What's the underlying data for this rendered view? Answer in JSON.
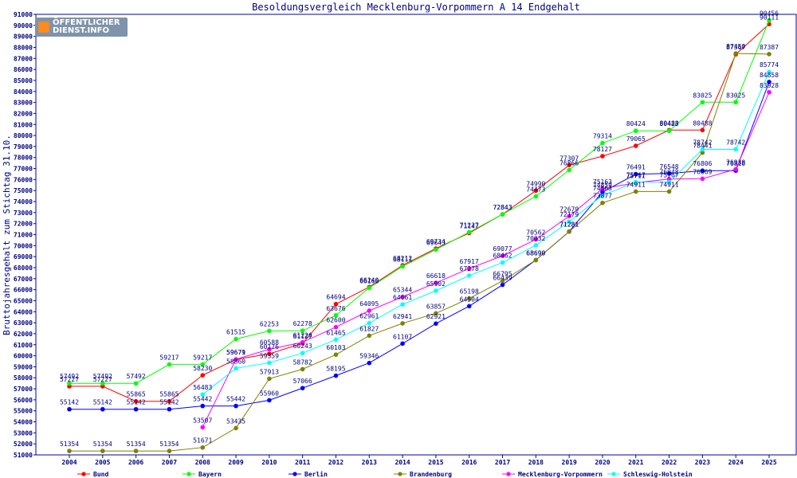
{
  "logo": {
    "line1": "ÖFFENTLICHER",
    "line2": "DIENST.INFO"
  },
  "chart_data": {
    "type": "line",
    "title": "Besoldungsvergleich Mecklenburg-Vorpommern A 14 Endgehalt",
    "ylabel": "Bruttojahresgehalt zum Stichtag 31.10.",
    "xlabel": "",
    "ylim": [
      51000,
      91000
    ],
    "grid": false,
    "legend_position": "bottom",
    "x": [
      "2004",
      "2005",
      "2006",
      "2007",
      "2008",
      "2009",
      "2010",
      "2011",
      "2012",
      "2013",
      "2014",
      "2015",
      "2016",
      "2017",
      "2018",
      "2019",
      "2020",
      "2021",
      "2022",
      "2023",
      "2024",
      "2025"
    ],
    "series": [
      {
        "name": "Bund",
        "color": "#ff0000",
        "values": [
          57227,
          57227,
          55865,
          55865,
          58230,
          59671,
          60176,
          61127,
          64694,
          66240,
          68212,
          69734,
          71147,
          72843,
          74990,
          77307,
          78127,
          79065,
          80488,
          80488,
          87367,
          90111
        ]
      },
      {
        "name": "Bayern",
        "color": "#00ff00",
        "values": [
          57492,
          57492,
          57492,
          59217,
          59217,
          61515,
          62253,
          62278,
          63676,
          66166,
          68111,
          69643,
          71227,
          72843,
          74473,
          76866,
          79314,
          80424,
          80423,
          83025,
          83025,
          90456
        ]
      },
      {
        "name": "Berlin",
        "color": "#0000ff",
        "values": [
          55142,
          55142,
          55142,
          55142,
          55442,
          55442,
          55960,
          57066,
          58195,
          59346,
          61107,
          62921,
          64504,
          66439,
          68690,
          71281,
          74859,
          76491,
          76548,
          76806,
          76810,
          84858
        ]
      },
      {
        "name": "Brandenburg",
        "color": "#808000",
        "values": [
          51354,
          51354,
          51354,
          51354,
          51671,
          53435,
          57913,
          58782,
          60103,
          61827,
          62941,
          63857,
          65198,
          66795,
          68690,
          71281,
          73877,
          74911,
          74911,
          78441,
          87450,
          87387
        ]
      },
      {
        "name": "Mecklenburg-Vorpommern",
        "color": "#ff00ff",
        "values": [
          null,
          null,
          null,
          null,
          53507,
          59679,
          60588,
          61226,
          62600,
          64095,
          65344,
          66618,
          67917,
          69077,
          70562,
          72679,
          75163,
          75711,
          76048,
          76069,
          76938,
          83928
        ]
      },
      {
        "name": "Schleswig-Holstein",
        "color": "#00ffff",
        "values": [
          null,
          null,
          null,
          null,
          56483,
          58860,
          59359,
          60243,
          61465,
          62961,
          64661,
          65902,
          67278,
          68462,
          70032,
          72179,
          74563,
          75767,
          75767,
          78742,
          78742,
          85774
        ]
      }
    ]
  }
}
